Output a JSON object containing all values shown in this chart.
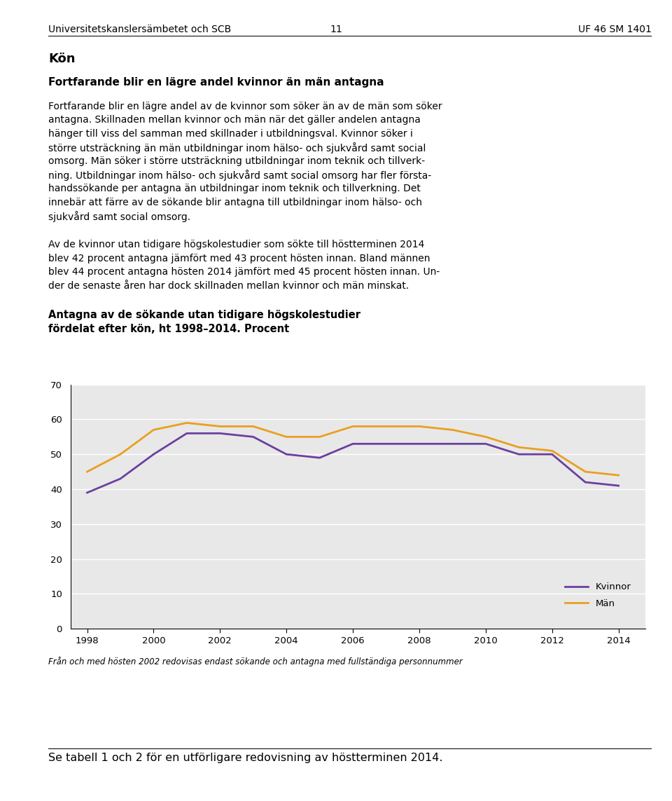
{
  "years": [
    1998,
    1999,
    2000,
    2001,
    2002,
    2003,
    2004,
    2005,
    2006,
    2007,
    2008,
    2009,
    2010,
    2011,
    2012,
    2013,
    2014
  ],
  "kvinnor": [
    39,
    43,
    50,
    56,
    56,
    55,
    50,
    49,
    53,
    53,
    53,
    53,
    53,
    50,
    50,
    42,
    41
  ],
  "man": [
    45,
    50,
    57,
    59,
    58,
    58,
    55,
    55,
    58,
    58,
    58,
    57,
    55,
    52,
    51,
    45,
    44
  ],
  "kvinnor_color": "#6B3FA0",
  "man_color": "#E8A020",
  "line_width": 2.0,
  "ylim": [
    0,
    70
  ],
  "yticks": [
    0,
    10,
    20,
    30,
    40,
    50,
    60,
    70
  ],
  "xticks": [
    1998,
    2000,
    2002,
    2004,
    2006,
    2008,
    2010,
    2012,
    2014
  ],
  "page_header_left": "Universitetskanslersämbetet och SCB",
  "page_header_right": "UF 46 SM 1401",
  "page_number": "11",
  "legend_kvinnor": "Kvinnor",
  "legend_man": "Män",
  "footnote": "Från och med hösten 2002 redovisas endast sökande och antagna med fullständiga personnummer",
  "bottom_text": "Se tabell 1 och 2 för en utförligare redovisning av höstterminen 2014.",
  "bg_color": "#E8E8E8"
}
